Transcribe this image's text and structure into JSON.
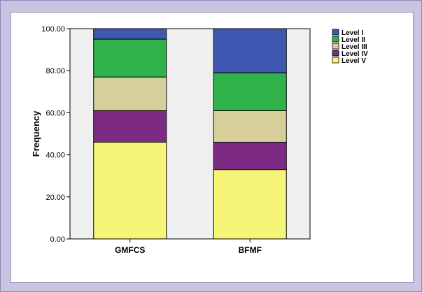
{
  "chart_data": {
    "type": "bar",
    "stacked": true,
    "categories": [
      "GMFCS",
      "BFMF"
    ],
    "series": [
      {
        "name": "Level V",
        "values": [
          46,
          33
        ],
        "color": "#f5f577"
      },
      {
        "name": "Level IV",
        "values": [
          15,
          13
        ],
        "color": "#7c2a83"
      },
      {
        "name": "Level III",
        "values": [
          16,
          15
        ],
        "color": "#d6cf9b"
      },
      {
        "name": "Level II",
        "values": [
          18,
          18
        ],
        "color": "#2fb24a"
      },
      {
        "name": "Level I",
        "values": [
          5,
          21
        ],
        "color": "#3e57b0"
      }
    ],
    "legend_order": [
      "Level I",
      "Level II",
      "Level III",
      "Level IV",
      "Level V"
    ],
    "ylabel": "Frequency",
    "xlabel": "",
    "ylim": [
      0,
      100
    ],
    "yticks": [
      "0.00",
      "20.00",
      "40.00",
      "60.00",
      "80.00",
      "100.00"
    ],
    "legend_position": "top-right",
    "plot_background": "#efefef",
    "grid": false
  }
}
